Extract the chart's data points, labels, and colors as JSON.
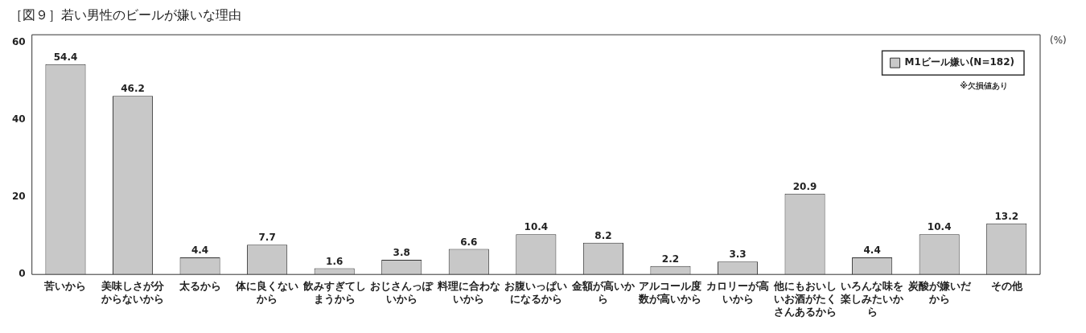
{
  "chart_data": {
    "type": "bar",
    "title": "［図９］若い男性のビールが嫌いな理由",
    "ylabel": "(%)",
    "categories": [
      "苦いから",
      "美味しさが分からないから",
      "太るから",
      "体に良くないから",
      "飲みすぎてしまうから",
      "おじさんっぽいから",
      "料理に合わないから",
      "お腹いっぱいになるから",
      "金額が高いから",
      "アルコール度数が高いから",
      "カロリーが高いから",
      "他にもおいしいお酒がたくさんあるから",
      "いろんな味を楽しみたいから",
      "炭酸が嫌いだから",
      "その他"
    ],
    "series": [
      {
        "name": "M1ビール嫌い(N=182)",
        "color": "#c8c8c8",
        "values": [
          54.4,
          46.2,
          4.4,
          7.7,
          1.6,
          3.8,
          6.6,
          10.4,
          8.2,
          2.2,
          3.3,
          20.9,
          4.4,
          10.4,
          13.2
        ]
      }
    ],
    "ylim": [
      0,
      62
    ],
    "yticks": [
      0,
      20,
      40,
      60
    ],
    "grid": false,
    "legend": "top right",
    "data_labels": true,
    "annotations": [
      "※欠損値あり"
    ]
  }
}
